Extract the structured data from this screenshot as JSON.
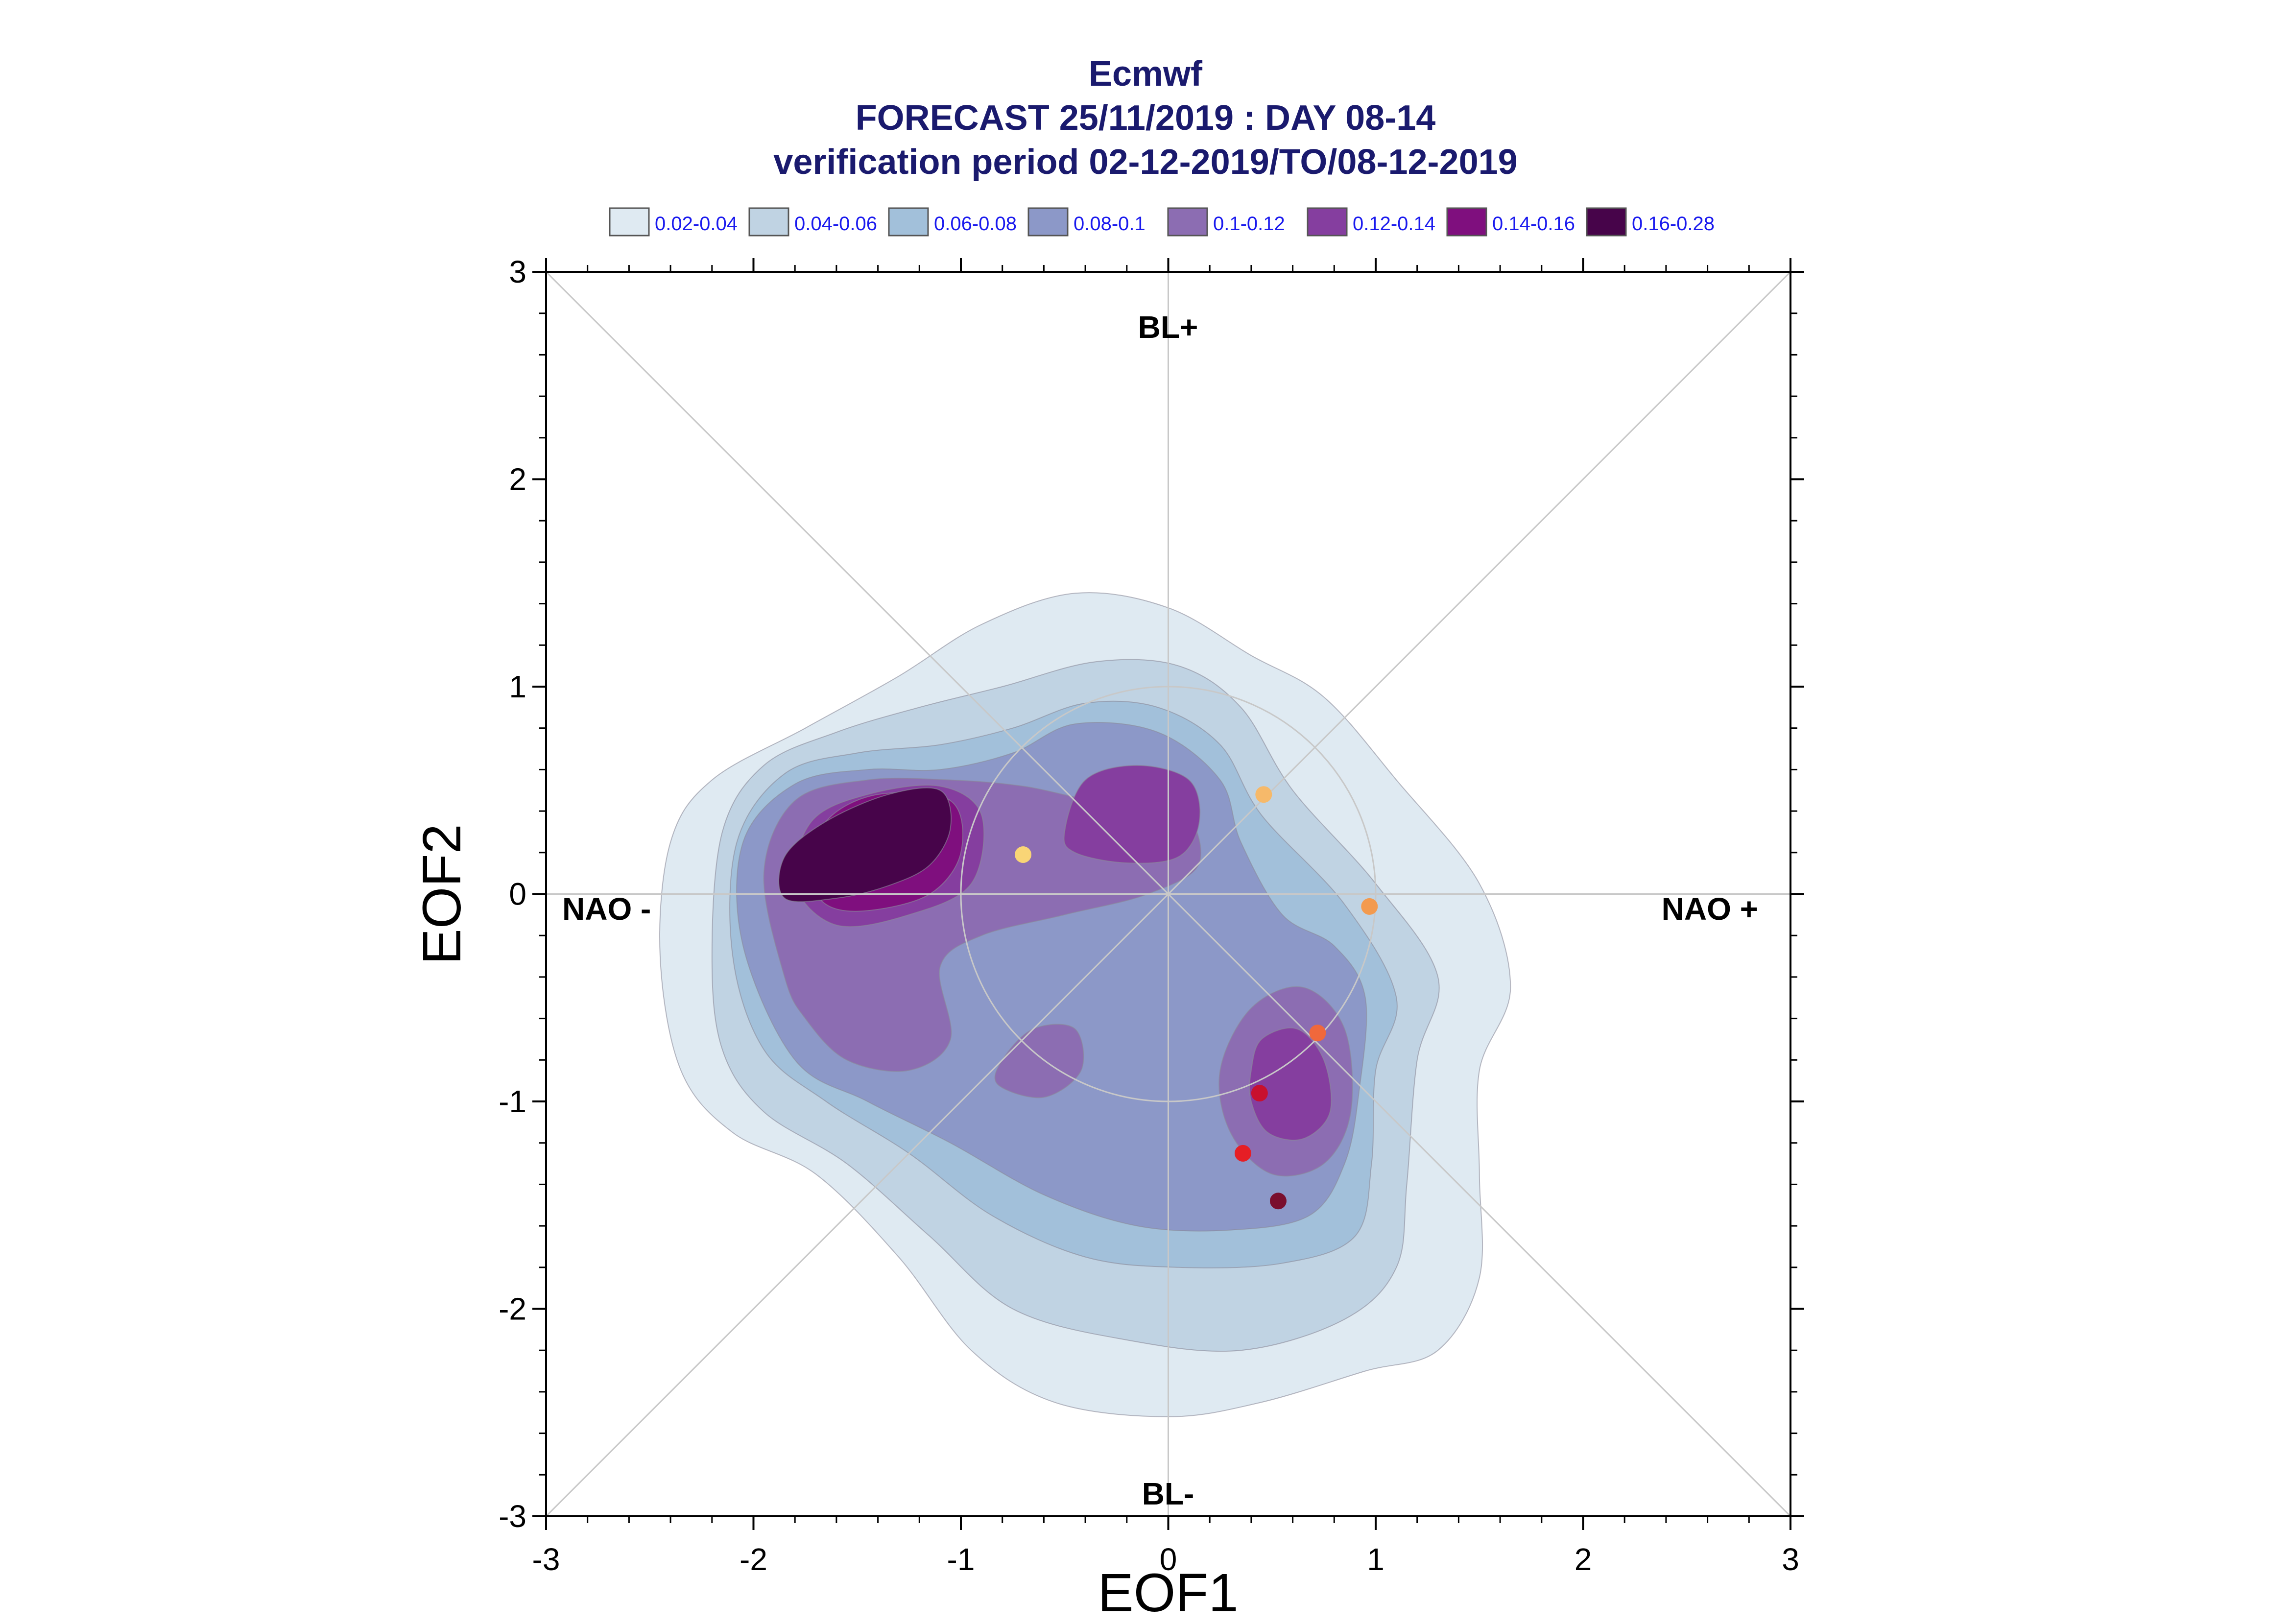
{
  "chart_data": {
    "type": "contour",
    "title_lines": [
      "Ecmwf",
      "FORECAST 25/11/2019 : DAY 08-14",
      "verification period 02-12-2019/TO/08-12-2019"
    ],
    "xlabel": "EOF1",
    "ylabel": "EOF2",
    "xlim": [
      -3,
      3
    ],
    "ylim": [
      -3,
      3
    ],
    "x_ticks": [
      "-3",
      "-2",
      "-1",
      "0",
      "1",
      "2",
      "3"
    ],
    "y_ticks": [
      "-3",
      "-2",
      "-1",
      "0",
      "1",
      "2",
      "3"
    ],
    "grid": false,
    "reference_lines": [
      "x=0",
      "y=0",
      "y=x",
      "y=-x"
    ],
    "reference_circle_radius": 1,
    "regime_labels": {
      "top": "BL+",
      "bottom": "BL-",
      "left": "NAO -",
      "right": "NAO +"
    },
    "legend": {
      "placement": "top",
      "entries": [
        {
          "label": "0.02-0.04",
          "color": "#dfeaf2"
        },
        {
          "label": "0.04-0.06",
          "color": "#c0d3e3"
        },
        {
          "label": "0.06-0.08",
          "color": "#a2c0da"
        },
        {
          "label": "0.08-0.1",
          "color": "#8c98c8"
        },
        {
          "label": "0.1-0.12",
          "color": "#8c6db2"
        },
        {
          "label": "0.12-0.14",
          "color": "#853e9f"
        },
        {
          "label": "0.14-0.16",
          "color": "#7f0f7e"
        },
        {
          "label": "0.16-0.28",
          "color": "#47044a"
        }
      ]
    },
    "density_levels": [
      {
        "level": "0.02-0.04",
        "polygons": [
          [
            [
              -2.45,
              -0.3
            ],
            [
              -2.4,
              0.25
            ],
            [
              -2.2,
              0.55
            ],
            [
              -1.75,
              0.8
            ],
            [
              -1.3,
              1.05
            ],
            [
              -0.9,
              1.3
            ],
            [
              -0.45,
              1.45
            ],
            [
              0.0,
              1.38
            ],
            [
              0.4,
              1.15
            ],
            [
              0.75,
              0.95
            ],
            [
              1.1,
              0.55
            ],
            [
              1.5,
              0.05
            ],
            [
              1.65,
              -0.45
            ],
            [
              1.5,
              -0.85
            ],
            [
              1.5,
              -1.35
            ],
            [
              1.5,
              -1.85
            ],
            [
              1.3,
              -2.2
            ],
            [
              0.95,
              -2.3
            ],
            [
              0.45,
              -2.45
            ],
            [
              0.0,
              -2.52
            ],
            [
              -0.55,
              -2.45
            ],
            [
              -0.95,
              -2.2
            ],
            [
              -1.3,
              -1.75
            ],
            [
              -1.7,
              -1.35
            ],
            [
              -2.1,
              -1.15
            ],
            [
              -2.35,
              -0.85
            ]
          ]
        ]
      },
      {
        "level": "0.04-0.06",
        "polygons": [
          [
            [
              -2.2,
              -0.3
            ],
            [
              -2.15,
              0.3
            ],
            [
              -1.95,
              0.62
            ],
            [
              -1.6,
              0.78
            ],
            [
              -1.2,
              0.9
            ],
            [
              -0.8,
              1.0
            ],
            [
              -0.35,
              1.12
            ],
            [
              0.05,
              1.1
            ],
            [
              0.35,
              0.9
            ],
            [
              0.6,
              0.5
            ],
            [
              1.0,
              0.05
            ],
            [
              1.3,
              -0.4
            ],
            [
              1.2,
              -0.8
            ],
            [
              1.15,
              -1.4
            ],
            [
              1.1,
              -1.8
            ],
            [
              0.85,
              -2.05
            ],
            [
              0.35,
              -2.2
            ],
            [
              -0.2,
              -2.15
            ],
            [
              -0.75,
              -2.0
            ],
            [
              -1.15,
              -1.65
            ],
            [
              -1.55,
              -1.3
            ],
            [
              -1.95,
              -1.05
            ],
            [
              -2.15,
              -0.75
            ]
          ]
        ]
      },
      {
        "level": "0.06-0.08",
        "polygons": [
          [
            [
              -2.1,
              -0.3
            ],
            [
              -2.08,
              0.25
            ],
            [
              -1.85,
              0.58
            ],
            [
              -1.5,
              0.68
            ],
            [
              -1.1,
              0.72
            ],
            [
              -0.75,
              0.8
            ],
            [
              -0.4,
              0.92
            ],
            [
              -0.05,
              0.9
            ],
            [
              0.25,
              0.72
            ],
            [
              0.45,
              0.38
            ],
            [
              0.85,
              -0.05
            ],
            [
              1.1,
              -0.5
            ],
            [
              1.0,
              -0.85
            ],
            [
              0.98,
              -1.3
            ],
            [
              0.9,
              -1.65
            ],
            [
              0.55,
              -1.78
            ],
            [
              0.05,
              -1.8
            ],
            [
              -0.4,
              -1.75
            ],
            [
              -0.85,
              -1.55
            ],
            [
              -1.25,
              -1.25
            ],
            [
              -1.65,
              -1.0
            ],
            [
              -1.95,
              -0.75
            ]
          ]
        ]
      },
      {
        "level": "0.08-0.1",
        "polygons": [
          [
            [
              -2.05,
              -0.25
            ],
            [
              -2.05,
              0.25
            ],
            [
              -1.8,
              0.53
            ],
            [
              -1.45,
              0.6
            ],
            [
              -1.1,
              0.6
            ],
            [
              -0.75,
              0.68
            ],
            [
              -0.45,
              0.82
            ],
            [
              -0.05,
              0.78
            ],
            [
              0.25,
              0.55
            ],
            [
              0.35,
              0.25
            ],
            [
              0.55,
              -0.1
            ],
            [
              0.8,
              -0.25
            ],
            [
              0.95,
              -0.5
            ],
            [
              0.92,
              -0.95
            ],
            [
              0.85,
              -1.3
            ],
            [
              0.68,
              -1.55
            ],
            [
              0.3,
              -1.62
            ],
            [
              -0.15,
              -1.6
            ],
            [
              -0.6,
              -1.45
            ],
            [
              -1.05,
              -1.2
            ],
            [
              -1.45,
              -1.0
            ],
            [
              -1.8,
              -0.8
            ]
          ]
        ]
      },
      {
        "level": "0.1-0.12",
        "polygons": [
          [
            [
              -1.85,
              -0.4
            ],
            [
              -1.95,
              0.1
            ],
            [
              -1.8,
              0.45
            ],
            [
              -1.45,
              0.55
            ],
            [
              -1.05,
              0.55
            ],
            [
              -0.7,
              0.52
            ],
            [
              -0.35,
              0.45
            ],
            [
              0.05,
              0.42
            ],
            [
              0.15,
              0.15
            ],
            [
              -0.1,
              0.0
            ],
            [
              -0.5,
              -0.1
            ],
            [
              -0.9,
              -0.2
            ],
            [
              -1.1,
              -0.35
            ],
            [
              -1.05,
              -0.7
            ],
            [
              -1.25,
              -0.85
            ],
            [
              -1.55,
              -0.8
            ],
            [
              -1.75,
              -0.6
            ]
          ],
          [
            [
              0.25,
              -0.85
            ],
            [
              0.4,
              -0.55
            ],
            [
              0.65,
              -0.45
            ],
            [
              0.85,
              -0.65
            ],
            [
              0.88,
              -1.05
            ],
            [
              0.75,
              -1.3
            ],
            [
              0.5,
              -1.35
            ],
            [
              0.3,
              -1.15
            ]
          ],
          [
            [
              -0.8,
              -0.8
            ],
            [
              -0.65,
              -0.65
            ],
            [
              -0.45,
              -0.65
            ],
            [
              -0.42,
              -0.85
            ],
            [
              -0.6,
              -0.98
            ],
            [
              -0.82,
              -0.92
            ]
          ]
        ]
      },
      {
        "level": "0.12-0.14",
        "polygons": [
          [
            [
              -1.8,
              0.05
            ],
            [
              -1.72,
              0.35
            ],
            [
              -1.45,
              0.48
            ],
            [
              -1.1,
              0.52
            ],
            [
              -0.9,
              0.38
            ],
            [
              -0.95,
              0.05
            ],
            [
              -1.25,
              -0.1
            ],
            [
              -1.6,
              -0.15
            ]
          ],
          [
            [
              -0.5,
              0.3
            ],
            [
              -0.4,
              0.55
            ],
            [
              -0.15,
              0.62
            ],
            [
              0.1,
              0.55
            ],
            [
              0.15,
              0.35
            ],
            [
              0.05,
              0.18
            ],
            [
              -0.2,
              0.15
            ],
            [
              -0.45,
              0.2
            ]
          ],
          [
            [
              0.4,
              -0.85
            ],
            [
              0.45,
              -0.7
            ],
            [
              0.62,
              -0.65
            ],
            [
              0.75,
              -0.8
            ],
            [
              0.78,
              -1.05
            ],
            [
              0.65,
              -1.18
            ],
            [
              0.48,
              -1.15
            ],
            [
              0.4,
              -1.0
            ]
          ]
        ]
      },
      {
        "level": "0.14-0.16",
        "polygons": [
          [
            [
              -1.72,
              0.1
            ],
            [
              -1.65,
              0.35
            ],
            [
              -1.4,
              0.48
            ],
            [
              -1.05,
              0.45
            ],
            [
              -1.0,
              0.2
            ],
            [
              -1.15,
              0.0
            ],
            [
              -1.45,
              -0.08
            ],
            [
              -1.65,
              -0.05
            ]
          ]
        ]
      },
      {
        "level": "0.16-0.28",
        "polygons": [
          [
            [
              -1.85,
              -0.02
            ],
            [
              -1.85,
              0.18
            ],
            [
              -1.65,
              0.35
            ],
            [
              -1.35,
              0.48
            ],
            [
              -1.1,
              0.5
            ],
            [
              -1.05,
              0.32
            ],
            [
              -1.15,
              0.14
            ],
            [
              -1.35,
              0.04
            ],
            [
              -1.6,
              -0.02
            ]
          ]
        ]
      }
    ],
    "points": [
      {
        "x": -0.7,
        "y": 0.19,
        "color": "#f9d576"
      },
      {
        "x": 0.46,
        "y": 0.48,
        "color": "#f6b96a"
      },
      {
        "x": 0.97,
        "y": -0.06,
        "color": "#f39a4e"
      },
      {
        "x": 0.72,
        "y": -0.67,
        "color": "#f0683c"
      },
      {
        "x": 0.44,
        "y": -0.96,
        "color": "#c8102e"
      },
      {
        "x": 0.36,
        "y": -1.25,
        "color": "#e61e25"
      },
      {
        "x": 0.53,
        "y": -1.48,
        "color": "#7a0e2e"
      }
    ],
    "colors": {
      "title": "#1a1a6e",
      "legend_text": "#1a1aee",
      "axis": "#000000",
      "reference_lines": "#c8c8c8"
    }
  }
}
